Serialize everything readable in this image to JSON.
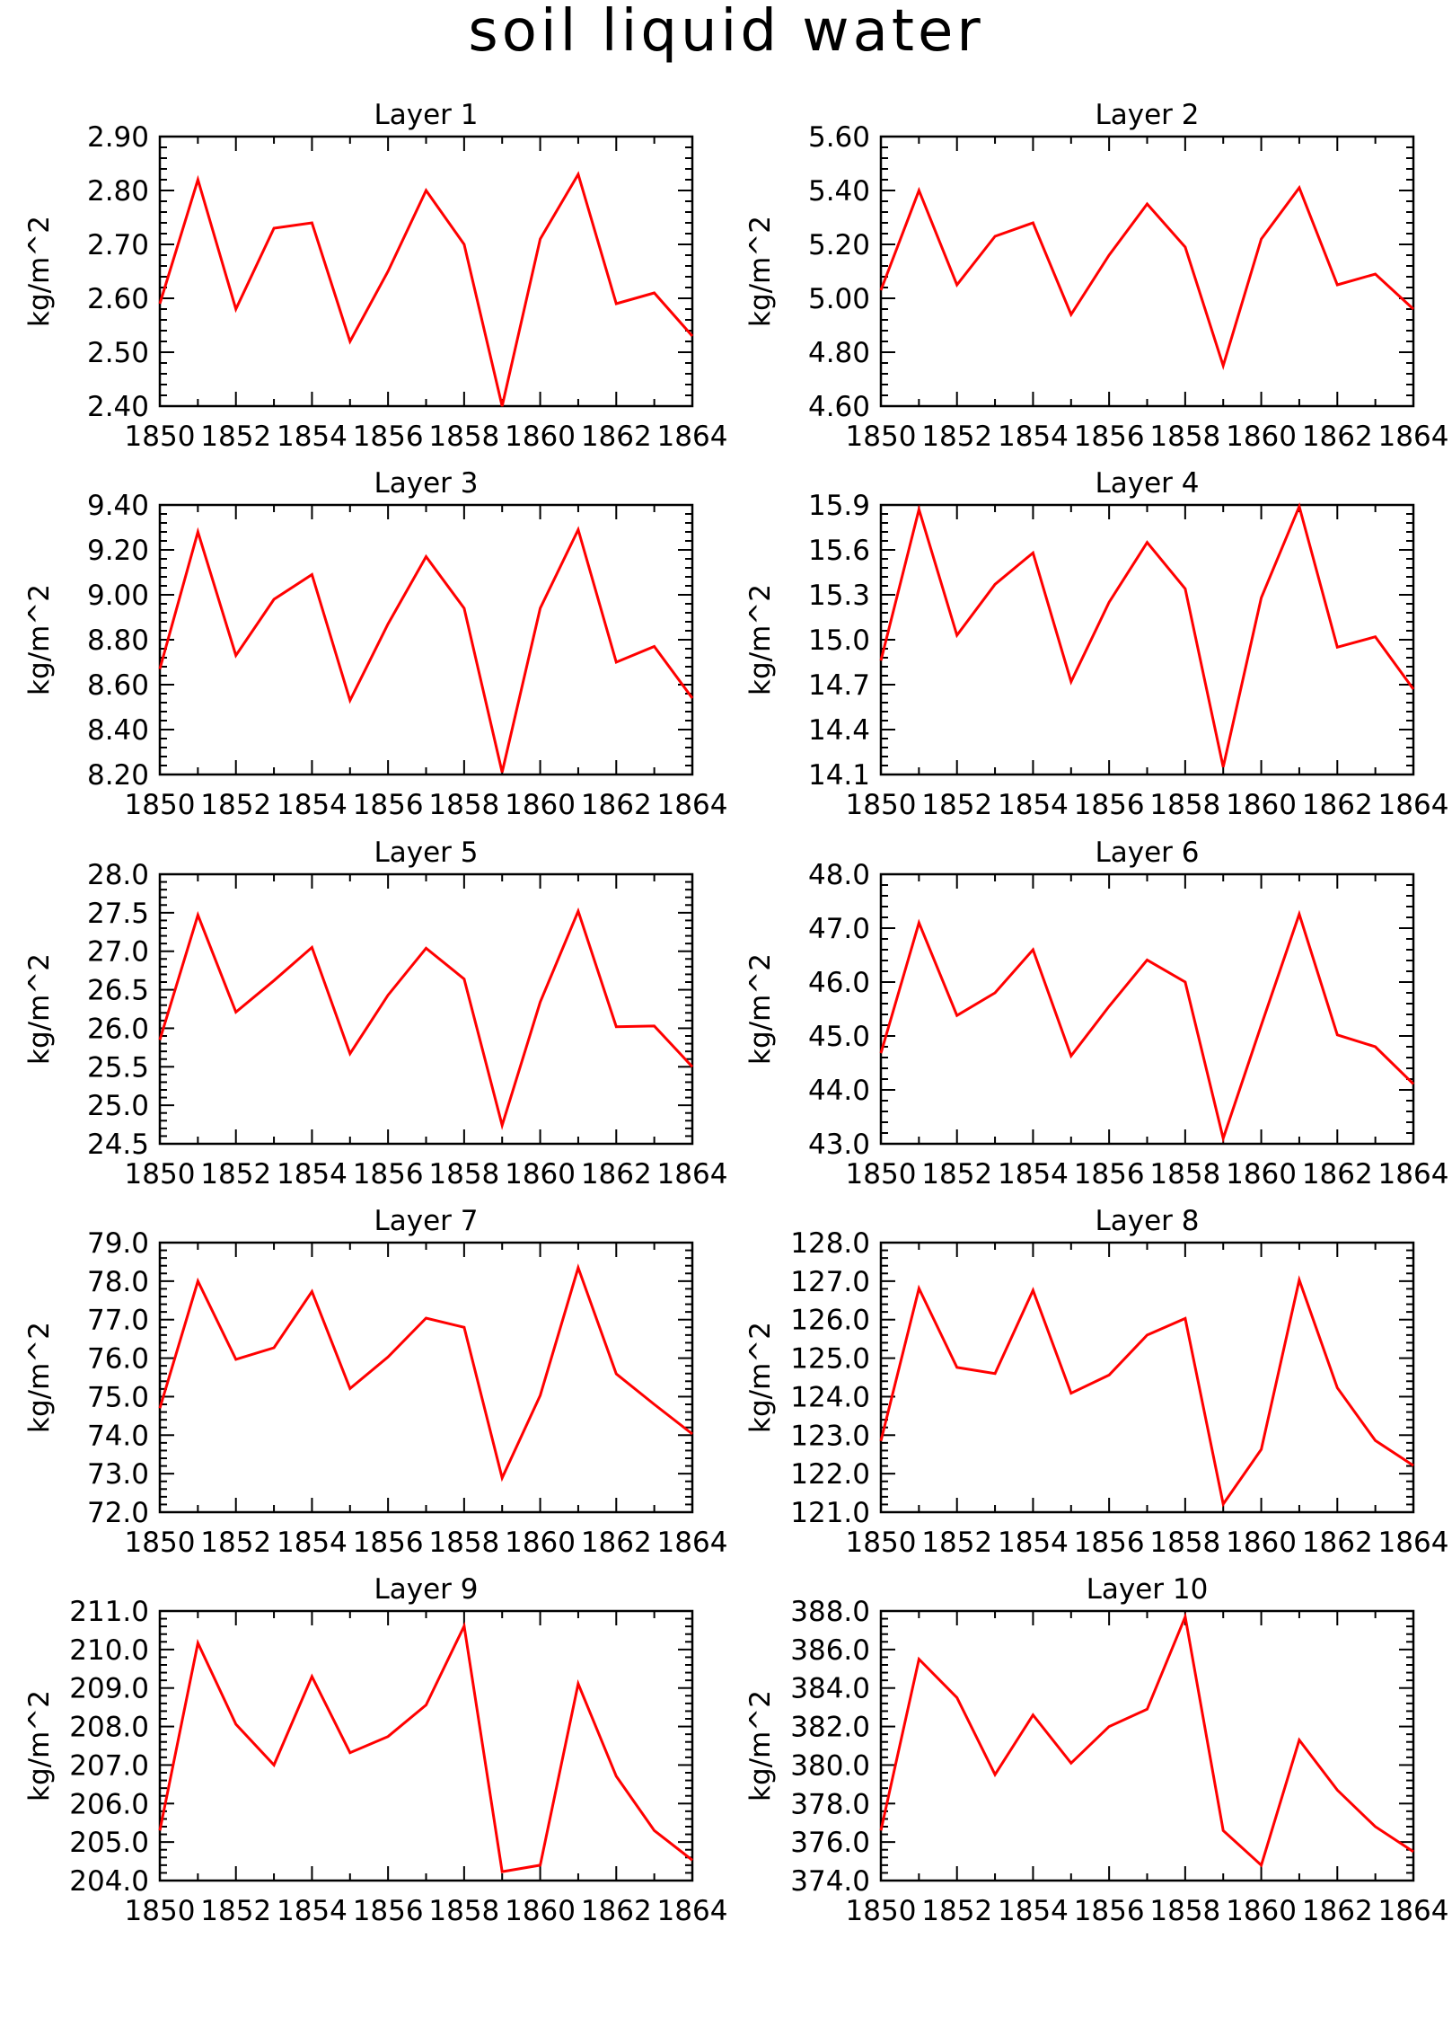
{
  "title": "soil liquid water",
  "colors": {
    "line": "#ff0000",
    "axis": "#000000",
    "background": "#ffffff"
  },
  "chart_data": [
    {
      "type": "line",
      "title": "Layer 1",
      "ylabel": "kg/m^2",
      "x": [
        1850,
        1851,
        1852,
        1853,
        1854,
        1855,
        1856,
        1857,
        1858,
        1859,
        1860,
        1861,
        1862,
        1863,
        1864
      ],
      "xticks": [
        "1850",
        "1852",
        "1854",
        "1856",
        "1858",
        "1860",
        "1862",
        "1864"
      ],
      "xlim": [
        1850,
        1864
      ],
      "ylim": [
        2.4,
        2.9
      ],
      "yticks": [
        "2.40",
        "2.50",
        "2.60",
        "2.70",
        "2.80",
        "2.90"
      ],
      "series": [
        {
          "values": [
            2.59,
            2.82,
            2.58,
            2.73,
            2.74,
            2.52,
            2.65,
            2.8,
            2.7,
            2.4,
            2.71,
            2.83,
            2.59,
            2.61,
            2.53
          ]
        }
      ]
    },
    {
      "type": "line",
      "title": "Layer 2",
      "ylabel": "kg/m^2",
      "x": [
        1850,
        1851,
        1852,
        1853,
        1854,
        1855,
        1856,
        1857,
        1858,
        1859,
        1860,
        1861,
        1862,
        1863,
        1864
      ],
      "xticks": [
        "1850",
        "1852",
        "1854",
        "1856",
        "1858",
        "1860",
        "1862",
        "1864"
      ],
      "xlim": [
        1850,
        1864
      ],
      "ylim": [
        4.6,
        5.6
      ],
      "yticks": [
        "4.60",
        "4.80",
        "5.00",
        "5.20",
        "5.40",
        "5.60"
      ],
      "series": [
        {
          "values": [
            5.03,
            5.4,
            5.05,
            5.23,
            5.28,
            4.94,
            5.16,
            5.35,
            5.19,
            4.75,
            5.22,
            5.41,
            5.05,
            5.09,
            4.96
          ]
        }
      ]
    },
    {
      "type": "line",
      "title": "Layer 3",
      "ylabel": "kg/m^2",
      "x": [
        1850,
        1851,
        1852,
        1853,
        1854,
        1855,
        1856,
        1857,
        1858,
        1859,
        1860,
        1861,
        1862,
        1863,
        1864
      ],
      "xticks": [
        "1850",
        "1852",
        "1854",
        "1856",
        "1858",
        "1860",
        "1862",
        "1864"
      ],
      "xlim": [
        1850,
        1864
      ],
      "ylim": [
        8.2,
        9.4
      ],
      "yticks": [
        "8.20",
        "8.40",
        "8.60",
        "8.80",
        "9.00",
        "9.20",
        "9.40"
      ],
      "series": [
        {
          "values": [
            8.67,
            9.28,
            8.73,
            8.98,
            9.09,
            8.53,
            8.87,
            9.17,
            8.94,
            8.21,
            8.94,
            9.29,
            8.7,
            8.77,
            8.54
          ]
        }
      ]
    },
    {
      "type": "line",
      "title": "Layer 4",
      "ylabel": "kg/m^2",
      "x": [
        1850,
        1851,
        1852,
        1853,
        1854,
        1855,
        1856,
        1857,
        1858,
        1859,
        1860,
        1861,
        1862,
        1863,
        1864
      ],
      "xticks": [
        "1850",
        "1852",
        "1854",
        "1856",
        "1858",
        "1860",
        "1862",
        "1864"
      ],
      "xlim": [
        1850,
        1864
      ],
      "ylim": [
        14.1,
        15.9
      ],
      "yticks": [
        "14.1",
        "14.4",
        "14.7",
        "15.0",
        "15.3",
        "15.6",
        "15.9"
      ],
      "series": [
        {
          "values": [
            14.86,
            15.87,
            15.03,
            15.37,
            15.58,
            14.72,
            15.25,
            15.65,
            15.34,
            14.15,
            15.28,
            15.89,
            14.95,
            15.02,
            14.67
          ]
        }
      ]
    },
    {
      "type": "line",
      "title": "Layer 5",
      "ylabel": "kg/m^2",
      "x": [
        1850,
        1851,
        1852,
        1853,
        1854,
        1855,
        1856,
        1857,
        1858,
        1859,
        1860,
        1861,
        1862,
        1863,
        1864
      ],
      "xticks": [
        "1850",
        "1852",
        "1854",
        "1856",
        "1858",
        "1860",
        "1862",
        "1864"
      ],
      "xlim": [
        1850,
        1864
      ],
      "ylim": [
        24.5,
        28.0
      ],
      "yticks": [
        "24.5",
        "25.0",
        "25.5",
        "26.0",
        "26.5",
        "27.0",
        "27.5",
        "28.0"
      ],
      "series": [
        {
          "values": [
            25.85,
            27.47,
            26.21,
            26.62,
            27.05,
            25.67,
            26.43,
            27.04,
            26.64,
            24.74,
            26.34,
            27.52,
            26.02,
            26.03,
            25.5
          ]
        }
      ]
    },
    {
      "type": "line",
      "title": "Layer 6",
      "ylabel": "kg/m^2",
      "x": [
        1850,
        1851,
        1852,
        1853,
        1854,
        1855,
        1856,
        1857,
        1858,
        1859,
        1860,
        1861,
        1862,
        1863,
        1864
      ],
      "xticks": [
        "1850",
        "1852",
        "1854",
        "1856",
        "1858",
        "1860",
        "1862",
        "1864"
      ],
      "xlim": [
        1850,
        1864
      ],
      "ylim": [
        43.0,
        48.0
      ],
      "yticks": [
        "43.0",
        "44.0",
        "45.0",
        "46.0",
        "47.0",
        "48.0"
      ],
      "series": [
        {
          "values": [
            44.68,
            47.1,
            45.38,
            45.8,
            46.6,
            44.63,
            45.55,
            46.41,
            46.0,
            43.1,
            45.2,
            47.26,
            45.02,
            44.8,
            44.11
          ]
        }
      ]
    },
    {
      "type": "line",
      "title": "Layer 7",
      "ylabel": "kg/m^2",
      "x": [
        1850,
        1851,
        1852,
        1853,
        1854,
        1855,
        1856,
        1857,
        1858,
        1859,
        1860,
        1861,
        1862,
        1863,
        1864
      ],
      "xticks": [
        "1850",
        "1852",
        "1854",
        "1856",
        "1858",
        "1860",
        "1862",
        "1864"
      ],
      "xlim": [
        1850,
        1864
      ],
      "ylim": [
        72.0,
        79.0
      ],
      "yticks": [
        "72.0",
        "73.0",
        "74.0",
        "75.0",
        "76.0",
        "77.0",
        "78.0",
        "79.0"
      ],
      "series": [
        {
          "values": [
            74.7,
            78.0,
            75.97,
            76.27,
            77.73,
            75.21,
            76.03,
            77.04,
            76.8,
            72.89,
            75.03,
            78.35,
            75.59,
            74.8,
            74.03
          ]
        }
      ]
    },
    {
      "type": "line",
      "title": "Layer 8",
      "ylabel": "kg/m^2",
      "x": [
        1850,
        1851,
        1852,
        1853,
        1854,
        1855,
        1856,
        1857,
        1858,
        1859,
        1860,
        1861,
        1862,
        1863,
        1864
      ],
      "xticks": [
        "1850",
        "1852",
        "1854",
        "1856",
        "1858",
        "1860",
        "1862",
        "1864"
      ],
      "xlim": [
        1850,
        1864
      ],
      "ylim": [
        121.0,
        128.0
      ],
      "yticks": [
        "121.0",
        "122.0",
        "123.0",
        "124.0",
        "125.0",
        "126.0",
        "127.0",
        "128.0"
      ],
      "series": [
        {
          "values": [
            122.85,
            126.81,
            124.76,
            124.6,
            126.76,
            124.09,
            124.56,
            125.6,
            126.03,
            121.21,
            122.63,
            127.03,
            124.23,
            122.86,
            122.21
          ]
        }
      ]
    },
    {
      "type": "line",
      "title": "Layer 9",
      "ylabel": "kg/m^2",
      "x": [
        1850,
        1851,
        1852,
        1853,
        1854,
        1855,
        1856,
        1857,
        1858,
        1859,
        1860,
        1861,
        1862,
        1863,
        1864
      ],
      "xticks": [
        "1850",
        "1852",
        "1854",
        "1856",
        "1858",
        "1860",
        "1862",
        "1864"
      ],
      "xlim": [
        1850,
        1864
      ],
      "ylim": [
        204.0,
        211.0
      ],
      "yticks": [
        "204.0",
        "205.0",
        "206.0",
        "207.0",
        "208.0",
        "209.0",
        "210.0",
        "211.0"
      ],
      "series": [
        {
          "values": [
            205.3,
            210.17,
            208.06,
            207.0,
            209.3,
            207.32,
            207.74,
            208.56,
            210.61,
            204.23,
            204.4,
            209.11,
            206.71,
            205.3,
            204.53
          ]
        }
      ]
    },
    {
      "type": "line",
      "title": "Layer 10",
      "ylabel": "kg/m^2",
      "x": [
        1850,
        1851,
        1852,
        1853,
        1854,
        1855,
        1856,
        1857,
        1858,
        1859,
        1860,
        1861,
        1862,
        1863,
        1864
      ],
      "xticks": [
        "1850",
        "1852",
        "1854",
        "1856",
        "1858",
        "1860",
        "1862",
        "1864"
      ],
      "xlim": [
        1850,
        1864
      ],
      "ylim": [
        374.0,
        388.0
      ],
      "yticks": [
        "374.0",
        "376.0",
        "378.0",
        "380.0",
        "382.0",
        "384.0",
        "386.0",
        "388.0"
      ],
      "series": [
        {
          "values": [
            376.6,
            385.5,
            383.5,
            379.5,
            382.6,
            380.1,
            382.0,
            382.9,
            387.7,
            376.6,
            374.8,
            381.3,
            378.7,
            376.8,
            375.5
          ]
        }
      ]
    }
  ]
}
